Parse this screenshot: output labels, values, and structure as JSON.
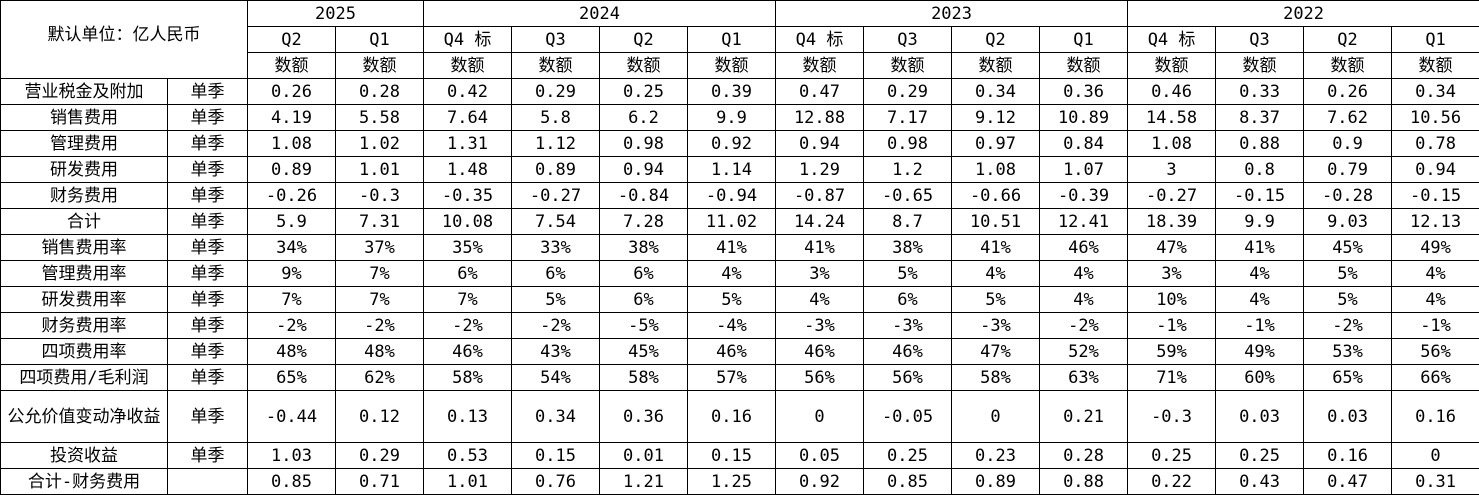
{
  "unit_label": "默认单位：亿人民币",
  "years": [
    {
      "label": "2025",
      "span": 2
    },
    {
      "label": "2024",
      "span": 4
    },
    {
      "label": "2023",
      "span": 4
    },
    {
      "label": "2022",
      "span": 4
    }
  ],
  "quarters": [
    "Q2",
    "Q1",
    "Q4 标",
    "Q3",
    "Q2",
    "Q1",
    "Q4 标",
    "Q3",
    "Q2",
    "Q1",
    "Q4 标",
    "Q3",
    "Q2",
    "Q1"
  ],
  "value_header": "数额",
  "rows": [
    {
      "name": "营业税金及附加",
      "period": "单季",
      "values": [
        "0.26",
        "0.28",
        "0.42",
        "0.29",
        "0.25",
        "0.39",
        "0.47",
        "0.29",
        "0.34",
        "0.36",
        "0.46",
        "0.33",
        "0.26",
        "0.34"
      ]
    },
    {
      "name": "销售费用",
      "period": "单季",
      "values": [
        "4.19",
        "5.58",
        "7.64",
        "5.8",
        "6.2",
        "9.9",
        "12.88",
        "7.17",
        "9.12",
        "10.89",
        "14.58",
        "8.37",
        "7.62",
        "10.56"
      ]
    },
    {
      "name": "管理费用",
      "period": "单季",
      "values": [
        "1.08",
        "1.02",
        "1.31",
        "1.12",
        "0.98",
        "0.92",
        "0.94",
        "0.98",
        "0.97",
        "0.84",
        "1.08",
        "0.88",
        "0.9",
        "0.78"
      ]
    },
    {
      "name": "研发费用",
      "period": "单季",
      "values": [
        "0.89",
        "1.01",
        "1.48",
        "0.89",
        "0.94",
        "1.14",
        "1.29",
        "1.2",
        "1.08",
        "1.07",
        "3",
        "0.8",
        "0.79",
        "0.94"
      ]
    },
    {
      "name": "财务费用",
      "period": "单季",
      "values": [
        "-0.26",
        "-0.3",
        "-0.35",
        "-0.27",
        "-0.84",
        "-0.94",
        "-0.87",
        "-0.65",
        "-0.66",
        "-0.39",
        "-0.27",
        "-0.15",
        "-0.28",
        "-0.15"
      ]
    },
    {
      "name": "合计",
      "period": "单季",
      "values": [
        "5.9",
        "7.31",
        "10.08",
        "7.54",
        "7.28",
        "11.02",
        "14.24",
        "8.7",
        "10.51",
        "12.41",
        "18.39",
        "9.9",
        "9.03",
        "12.13"
      ]
    },
    {
      "name": "销售费用率",
      "period": "单季",
      "values": [
        "34%",
        "37%",
        "35%",
        "33%",
        "38%",
        "41%",
        "41%",
        "38%",
        "41%",
        "46%",
        "47%",
        "41%",
        "45%",
        "49%"
      ]
    },
    {
      "name": "管理费用率",
      "period": "单季",
      "values": [
        "9%",
        "7%",
        "6%",
        "6%",
        "6%",
        "4%",
        "3%",
        "5%",
        "4%",
        "4%",
        "3%",
        "4%",
        "5%",
        "4%"
      ]
    },
    {
      "name": "研发费用率",
      "period": "单季",
      "values": [
        "7%",
        "7%",
        "7%",
        "5%",
        "6%",
        "5%",
        "4%",
        "6%",
        "5%",
        "4%",
        "10%",
        "4%",
        "5%",
        "4%"
      ]
    },
    {
      "name": "财务费用率",
      "period": "单季",
      "values": [
        "-2%",
        "-2%",
        "-2%",
        "-2%",
        "-5%",
        "-4%",
        "-3%",
        "-3%",
        "-3%",
        "-2%",
        "-1%",
        "-1%",
        "-2%",
        "-1%"
      ]
    },
    {
      "name": "四项费用率",
      "period": "单季",
      "values": [
        "48%",
        "48%",
        "46%",
        "43%",
        "45%",
        "46%",
        "46%",
        "46%",
        "47%",
        "52%",
        "59%",
        "49%",
        "53%",
        "56%"
      ]
    },
    {
      "name": "四项费用/毛利润",
      "period": "单季",
      "values": [
        "65%",
        "62%",
        "58%",
        "54%",
        "58%",
        "57%",
        "56%",
        "56%",
        "58%",
        "63%",
        "71%",
        "60%",
        "65%",
        "66%"
      ]
    },
    {
      "name": "公允价值变动净收益",
      "period": "单季",
      "values": [
        "-0.44",
        "0.12",
        "0.13",
        "0.34",
        "0.36",
        "0.16",
        "0",
        "-0.05",
        "0",
        "0.21",
        "-0.3",
        "0.03",
        "0.03",
        "0.16"
      ],
      "tall": true
    },
    {
      "name": "投资收益",
      "period": "单季",
      "values": [
        "1.03",
        "0.29",
        "0.53",
        "0.15",
        "0.01",
        "0.15",
        "0.05",
        "0.25",
        "0.23",
        "0.28",
        "0.25",
        "0.25",
        "0.16",
        "0"
      ]
    },
    {
      "name": "合计-财务费用",
      "period": "",
      "values": [
        "0.85",
        "0.71",
        "1.01",
        "0.76",
        "1.21",
        "1.25",
        "0.92",
        "0.85",
        "0.89",
        "0.88",
        "0.22",
        "0.43",
        "0.47",
        "0.31"
      ]
    }
  ]
}
